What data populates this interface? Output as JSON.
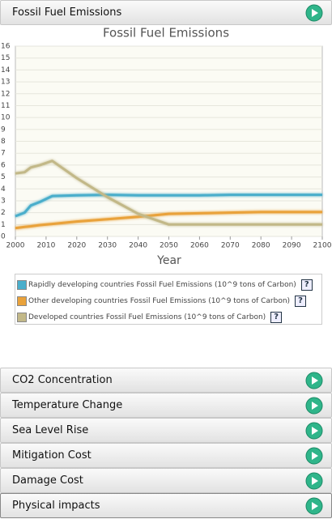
{
  "panels": [
    "Fossil Fuel Emissions",
    "CO2 Concentration",
    "Temperature Change",
    "Sea Level Rise",
    "Mitigation Cost",
    "Damage Cost",
    "Physical impacts"
  ],
  "legend_help": "?",
  "chart_data": {
    "type": "line",
    "title": "Fossil Fuel Emissions",
    "x_label": "Year",
    "x": [
      2000,
      2003,
      2005,
      2008,
      2012,
      2020,
      2030,
      2040,
      2050,
      2060,
      2070,
      2080,
      2090,
      2100
    ],
    "series": [
      {
        "name": "Rapidly developing countries Fossil Fuel Emissions (10^9 tons of Carbon)",
        "color": "#4aaecb",
        "values": [
          1.7,
          2.0,
          2.6,
          2.9,
          3.4,
          3.45,
          3.5,
          3.45,
          3.45,
          3.45,
          3.5,
          3.5,
          3.5,
          3.5
        ]
      },
      {
        "name": "Other developing countries Fossil Fuel Emissions (10^9 tons of Carbon)",
        "color": "#e9a23b",
        "values": [
          0.7,
          0.8,
          0.85,
          0.95,
          1.05,
          1.25,
          1.45,
          1.65,
          1.9,
          1.95,
          2.0,
          2.05,
          2.05,
          2.05
        ]
      },
      {
        "name": "Developed countries Fossil Fuel Emissions (10^9 tons of Carbon)",
        "color": "#c2b888",
        "values": [
          5.3,
          5.4,
          5.8,
          6.0,
          6.35,
          4.9,
          3.3,
          1.9,
          1.0,
          1.0,
          1.0,
          1.0,
          1.0,
          1.0
        ]
      }
    ],
    "xlim": [
      2000,
      2100
    ],
    "xticks": [
      2000,
      2010,
      2020,
      2030,
      2040,
      2050,
      2060,
      2070,
      2080,
      2090,
      2100
    ],
    "ylim": [
      0,
      16
    ],
    "yticks": [
      0,
      1,
      2,
      3,
      4,
      5,
      6,
      7,
      8,
      9,
      10,
      11,
      12,
      13,
      14,
      15,
      16
    ],
    "grid": true
  }
}
